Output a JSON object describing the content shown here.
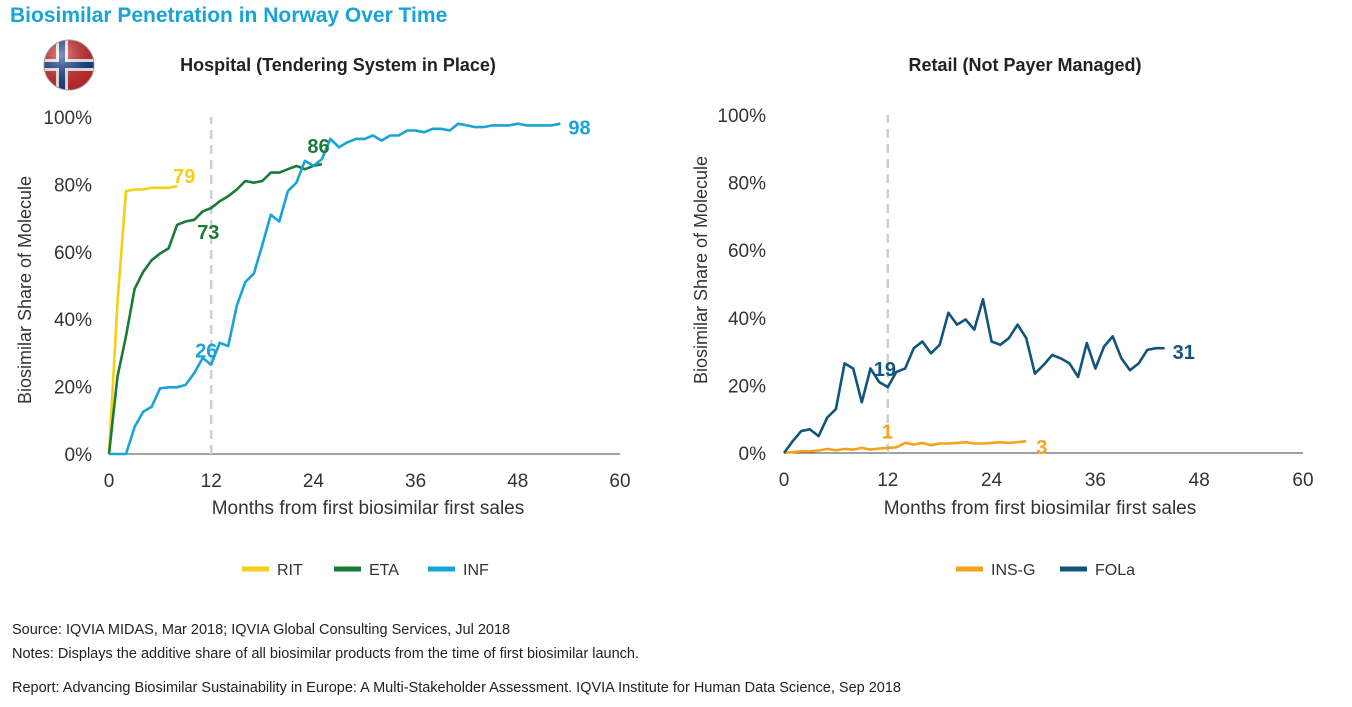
{
  "title": "Biosimilar Penetration in Norway Over Time",
  "footer": {
    "source": "Source: IQVIA MIDAS, Mar 2018; IQVIA Global Consulting Services, Jul 2018",
    "notes": "Notes: Displays the additive share of all biosimilar products from the time of first biosimilar launch.",
    "report": "Report: Advancing Biosimilar Sustainability in Europe: A Multi-Stakeholder Assessment. IQVIA Institute for Human Data Science, Sep 2018"
  },
  "icons": {
    "flag": "norway-flag-icon"
  },
  "colors": {
    "RIT": "#f5cf14",
    "ETA": "#1a7a37",
    "INF": "#1aa3d8",
    "INS-G": "#f5a31a",
    "FOLa": "#11547e",
    "title": "#1aa3d8"
  },
  "chart_data": [
    {
      "type": "line",
      "title": "Hospital (Tendering System in Place)",
      "xlabel": "Months from first biosimilar first sales",
      "ylabel": "Biosimilar Share of Molecule",
      "xlim": [
        0,
        60
      ],
      "ylim": [
        0,
        100
      ],
      "xticks": [
        "0",
        "12",
        "24",
        "36",
        "48",
        "60"
      ],
      "yticks": [
        "0%",
        "20%",
        "40%",
        "60%",
        "80%",
        "100%"
      ],
      "reference_line_x": 12,
      "legend_position": "bottom",
      "series": [
        {
          "name": "RIT",
          "color": "#f5cf14",
          "x": [
            0,
            1,
            2,
            3,
            4,
            5,
            6,
            7,
            8
          ],
          "y": [
            0,
            45,
            78,
            78.5,
            78.5,
            79,
            79,
            79,
            79.5
          ]
        },
        {
          "name": "ETA",
          "color": "#1a7a37",
          "x": [
            0,
            1,
            2,
            3,
            4,
            5,
            6,
            7,
            8,
            9,
            10,
            11,
            12,
            13,
            14,
            15,
            16,
            17,
            18,
            19,
            20,
            21,
            22,
            23,
            24,
            25
          ],
          "y": [
            0,
            23,
            35,
            49,
            54,
            57.5,
            59.5,
            61,
            68,
            69,
            69.5,
            72,
            73,
            75,
            76.5,
            78.5,
            81,
            80.5,
            81,
            83.5,
            83.5,
            84.5,
            85.5,
            84.5,
            85.5,
            86
          ]
        },
        {
          "name": "INF",
          "color": "#1aa3d8",
          "x": [
            0,
            1,
            2,
            3,
            4,
            5,
            6,
            7,
            8,
            9,
            10,
            11,
            12,
            13,
            14,
            15,
            16,
            17,
            18,
            19,
            20,
            21,
            22,
            23,
            24,
            25,
            26,
            27,
            28,
            29,
            30,
            31,
            32,
            33,
            34,
            35,
            36,
            37,
            38,
            39,
            40,
            41,
            42,
            43,
            44,
            45,
            46,
            47,
            48,
            49,
            50,
            51,
            52,
            53
          ],
          "y": [
            0,
            0,
            0,
            8,
            12.5,
            14,
            19.5,
            19.8,
            19.8,
            20.5,
            24,
            28.5,
            26.5,
            33,
            32,
            44,
            51,
            53.5,
            62,
            71,
            69,
            78,
            80.5,
            87,
            85.5,
            87.5,
            93.5,
            91,
            92.5,
            93.5,
            93.5,
            94.5,
            93,
            94.5,
            94.5,
            96,
            96,
            95.5,
            96.5,
            96.5,
            96,
            98,
            97.5,
            97,
            97,
            97.5,
            97.5,
            97.5,
            98,
            97.5,
            97.5,
            97.5,
            97.5,
            98
          ]
        }
      ],
      "annotations": [
        {
          "text": "79",
          "series": "RIT",
          "x": 8,
          "y": 79
        },
        {
          "text": "73",
          "series": "ETA",
          "x": 12,
          "y": 73
        },
        {
          "text": "86",
          "series": "ETA",
          "x": 24,
          "y": 86
        },
        {
          "text": "26",
          "series": "INF",
          "x": 12,
          "y": 26
        },
        {
          "text": "98",
          "series": "INF",
          "x": 53,
          "y": 98
        }
      ]
    },
    {
      "type": "line",
      "title": "Retail (Not Payer Managed)",
      "xlabel": "Months from first biosimilar first sales",
      "ylabel": "Biosimilar Share of Molecule",
      "xlim": [
        0,
        60
      ],
      "ylim": [
        0,
        100
      ],
      "xticks": [
        "0",
        "12",
        "24",
        "36",
        "48",
        "60"
      ],
      "yticks": [
        "0%",
        "20%",
        "40%",
        "60%",
        "80%",
        "100%"
      ],
      "reference_line_x": 12,
      "legend_position": "bottom",
      "series": [
        {
          "name": "INS-G",
          "color": "#f5a31a",
          "x": [
            0,
            1,
            2,
            3,
            4,
            5,
            6,
            7,
            8,
            9,
            10,
            11,
            12,
            13,
            14,
            15,
            16,
            17,
            18,
            19,
            20,
            21,
            22,
            23,
            24,
            25,
            26,
            27,
            28
          ],
          "y": [
            0,
            0.3,
            0.5,
            0.5,
            0.7,
            1.2,
            0.8,
            1.2,
            1,
            1.5,
            1,
            1.3,
            1.5,
            1.7,
            3,
            2.5,
            3,
            2.3,
            2.8,
            2.8,
            3,
            3.2,
            2.8,
            2.8,
            3,
            3.2,
            3,
            3.2,
            3.5
          ]
        },
        {
          "name": "FOLa",
          "color": "#11547e",
          "x": [
            0,
            1,
            2,
            3,
            4,
            5,
            6,
            7,
            8,
            9,
            10,
            11,
            12,
            13,
            14,
            15,
            16,
            17,
            18,
            19,
            20,
            21,
            22,
            23,
            24,
            25,
            26,
            27,
            28,
            29,
            30,
            31,
            32,
            33,
            34,
            35,
            36,
            37,
            38,
            39,
            40,
            41,
            42,
            43,
            44
          ],
          "y": [
            0,
            3.5,
            6.5,
            7,
            5,
            10.5,
            13,
            26.5,
            25,
            15,
            25,
            21,
            19.5,
            24,
            25,
            31,
            33,
            29.5,
            32,
            41.5,
            38,
            39.5,
            36.5,
            45.5,
            33,
            32,
            34,
            38,
            34,
            23.5,
            26,
            29,
            28,
            26.5,
            22.5,
            32.5,
            25,
            31.5,
            34.5,
            28,
            24.5,
            26.5,
            30.5,
            31,
            31
          ]
        }
      ],
      "annotations": [
        {
          "text": "1",
          "series": "INS-G",
          "x": 12,
          "y": 1
        },
        {
          "text": "3",
          "series": "INS-G",
          "x": 28,
          "y": 3
        },
        {
          "text": "19",
          "series": "FOLa",
          "x": 12,
          "y": 19
        },
        {
          "text": "31",
          "series": "FOLa",
          "x": 44,
          "y": 31
        }
      ]
    }
  ]
}
